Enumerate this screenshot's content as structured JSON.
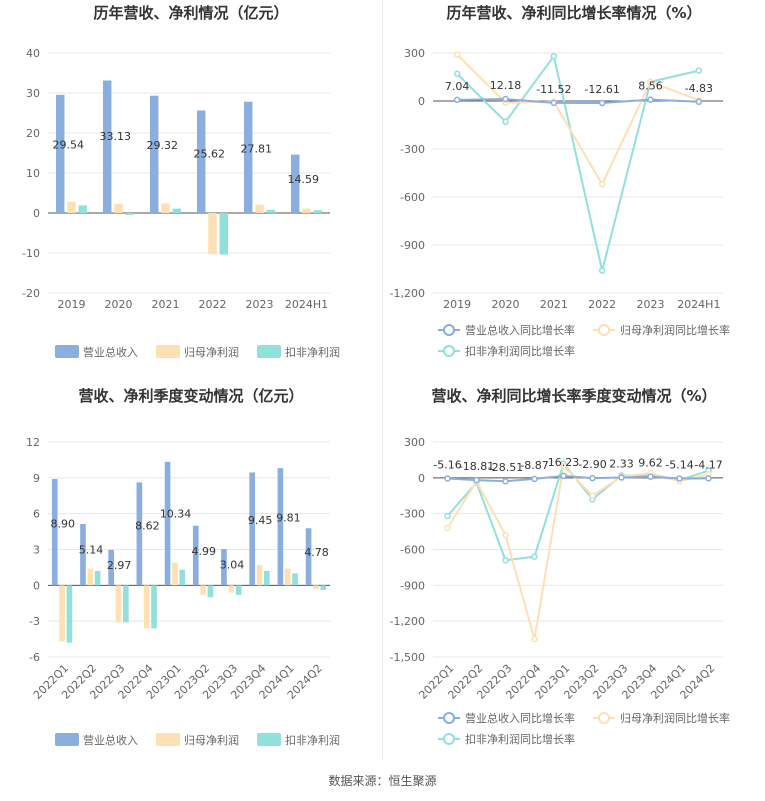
{
  "colors": {
    "revenue": "#8aaede",
    "netprofit": "#fde0b3",
    "deducted": "#92e0dc",
    "grid": "#e8e8e8",
    "axis": "#555555"
  },
  "footer": {
    "source": "数据来源：恒生聚源"
  },
  "chart_data": [
    {
      "id": "annual_amount",
      "type": "bar",
      "title": "历年营收、净利情况（亿元）",
      "categories": [
        "2019",
        "2020",
        "2021",
        "2022",
        "2023",
        "2024H1"
      ],
      "ylim": [
        -20,
        40
      ],
      "yticks": [
        -20,
        -10,
        0,
        10,
        20,
        30,
        40
      ],
      "series": [
        {
          "name": "营业总收入",
          "color": "#8aaede",
          "values": [
            29.54,
            33.13,
            29.32,
            25.62,
            27.81,
            14.59
          ],
          "labels": [
            "29.54",
            "33.13",
            "29.32",
            "25.62",
            "27.81",
            "14.59"
          ]
        },
        {
          "name": "归母净利润",
          "color": "#fde0b3",
          "values": [
            2.8,
            2.3,
            2.4,
            -10.3,
            2.1,
            1.1
          ]
        },
        {
          "name": "扣非净利润",
          "color": "#92e0dc",
          "values": [
            1.9,
            -0.5,
            1.1,
            -10.4,
            0.8,
            0.7
          ]
        }
      ],
      "legend": "bottom"
    },
    {
      "id": "annual_growth",
      "type": "line",
      "title": "历年营收、净利同比增长率情况（%）",
      "categories": [
        "2019",
        "2020",
        "2021",
        "2022",
        "2023",
        "2024H1"
      ],
      "ylim": [
        -1200,
        300
      ],
      "yticks": [
        -1200,
        -900,
        -600,
        -300,
        0,
        300
      ],
      "ytick_labels": [
        "-1,200",
        "-900",
        "-600",
        "-300",
        "0",
        "300"
      ],
      "series": [
        {
          "name": "营业总收入同比增长率",
          "color": "#8aaede",
          "values": [
            7.04,
            12.18,
            -11.52,
            -12.61,
            8.56,
            -4.83
          ],
          "labels": [
            "7.04",
            "12.18",
            "-11.52",
            "-12.61",
            "8.56",
            "-4.83"
          ]
        },
        {
          "name": "归母净利润同比增长率",
          "color": "#fde0b3",
          "values": [
            290,
            -10,
            -5,
            -520,
            120,
            5
          ]
        },
        {
          "name": "扣非净利润同比增长率",
          "color": "#92e0dc",
          "values": [
            170,
            -130,
            280,
            -1060,
            120,
            190
          ]
        }
      ],
      "legend": "bottom"
    },
    {
      "id": "quarterly_amount",
      "type": "bar",
      "title": "营收、净利季度变动情况（亿元）",
      "categories": [
        "2022Q1",
        "2022Q2",
        "2022Q3",
        "2022Q4",
        "2023Q1",
        "2023Q2",
        "2023Q3",
        "2023Q4",
        "2024Q1",
        "2024Q2"
      ],
      "ylim": [
        -6,
        12
      ],
      "yticks": [
        -6,
        -3,
        0,
        3,
        6,
        9,
        12
      ],
      "series": [
        {
          "name": "营业总收入",
          "color": "#8aaede",
          "values": [
            8.9,
            5.14,
            2.97,
            8.62,
            10.34,
            4.99,
            3.04,
            9.45,
            9.81,
            4.78
          ],
          "labels": [
            "8.90",
            "5.14",
            "2.97",
            "8.62",
            "10.34",
            "4.99",
            "3.04",
            "9.45",
            "9.81",
            "4.78"
          ]
        },
        {
          "name": "归母净利润",
          "color": "#fde0b3",
          "values": [
            -4.7,
            1.4,
            -3.1,
            -3.6,
            1.9,
            -0.8,
            -0.6,
            1.7,
            1.4,
            -0.3
          ]
        },
        {
          "name": "扣非净利润",
          "color": "#92e0dc",
          "values": [
            -4.8,
            1.2,
            -3.1,
            -3.6,
            1.3,
            -1.0,
            -0.8,
            1.2,
            1.0,
            -0.4
          ]
        }
      ],
      "legend": "bottom"
    },
    {
      "id": "quarterly_growth",
      "type": "line",
      "title": "营收、净利同比增长率季度变动情况（%）",
      "categories": [
        "2022Q1",
        "2022Q2",
        "2022Q3",
        "2022Q4",
        "2023Q1",
        "2023Q2",
        "2023Q3",
        "2023Q4",
        "2024Q1",
        "2024Q2"
      ],
      "ylim": [
        -1500,
        300
      ],
      "yticks": [
        -1500,
        -1200,
        -900,
        -600,
        -300,
        0,
        300
      ],
      "ytick_labels": [
        "-1,500",
        "-1,200",
        "-900",
        "-600",
        "-300",
        "0",
        "300"
      ],
      "series": [
        {
          "name": "营业总收入同比增长率",
          "color": "#8aaede",
          "values": [
            -5.16,
            -18.81,
            -28.51,
            -8.87,
            16.23,
            -2.9,
            2.33,
            9.62,
            -5.14,
            -4.17
          ],
          "labels": [
            "-5.16",
            "-18.81",
            "-28.51",
            "-8.87",
            "16.23",
            "-2.90",
            "2.33",
            "9.62",
            "-5.14",
            "-4.17"
          ]
        },
        {
          "name": "归母净利润同比增长率",
          "color": "#fde0b3",
          "values": [
            -420,
            -30,
            -480,
            -1350,
            100,
            -150,
            10,
            40,
            -30,
            30
          ]
        },
        {
          "name": "扣非净利润同比增长率",
          "color": "#92e0dc",
          "values": [
            -320,
            -40,
            -690,
            -660,
            120,
            -180,
            20,
            20,
            -20,
            60
          ]
        }
      ],
      "legend": "bottom"
    }
  ]
}
